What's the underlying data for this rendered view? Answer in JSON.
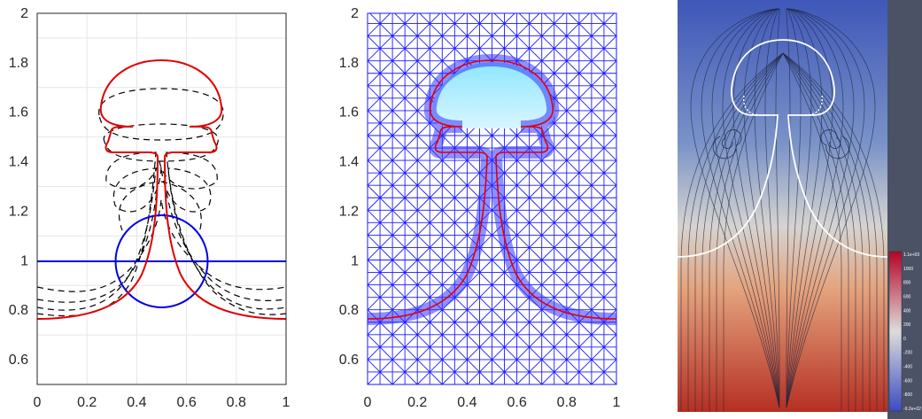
{
  "panels": {
    "left": {
      "xticks": [
        "0",
        "0.2",
        "0.4",
        "0.6",
        "0.8",
        "1"
      ],
      "yticks": [
        "0.6",
        "0.8",
        "1",
        "1.2",
        "1.4",
        "1.6",
        "1.8",
        "2"
      ]
    },
    "middle": {
      "xticks": [
        "0",
        "0.2",
        "0.4",
        "0.6",
        "0.8",
        "1"
      ],
      "yticks": [
        "0.6",
        "0.8",
        "1",
        "1.2",
        "1.4",
        "1.6",
        "1.8",
        "2"
      ]
    },
    "right": {
      "colorbar_ticks": [
        "1.1e+03",
        "1000",
        "800",
        "600",
        "400",
        "200",
        "0",
        "-200",
        "-400",
        "-600",
        "-800",
        "-9.2e+02"
      ]
    }
  },
  "colors": {
    "interface_final": "#e00000",
    "interface_initial": "#0000e0",
    "intermediate": "#000000",
    "mesh": "#1a1aff",
    "field_high": "#b83a2a",
    "field_low": "#3b4cc0",
    "side_panel": "#4b5266"
  },
  "chart_data": [
    {
      "type": "line",
      "xlim": [
        0,
        1
      ],
      "ylim": [
        0.5,
        2
      ],
      "grid": true,
      "series": [
        {
          "x": [
            0,
            0.33,
            0.5,
            0.67,
            1
          ],
          "y": [
            1,
            1,
            1,
            1,
            1
          ]
        },
        {
          "x": [
            0.32,
            0.5,
            0.68
          ],
          "y": [
            1.0,
            1.18,
            1.0
          ]
        },
        {
          "x": [
            0,
            0.2,
            0.4,
            0.47,
            0.5,
            0.53,
            0.6,
            0.8,
            1
          ],
          "y": [
            0.77,
            0.8,
            1.0,
            1.3,
            1.8,
            1.3,
            1.0,
            0.8,
            0.77
          ]
        }
      ]
    }
  ]
}
